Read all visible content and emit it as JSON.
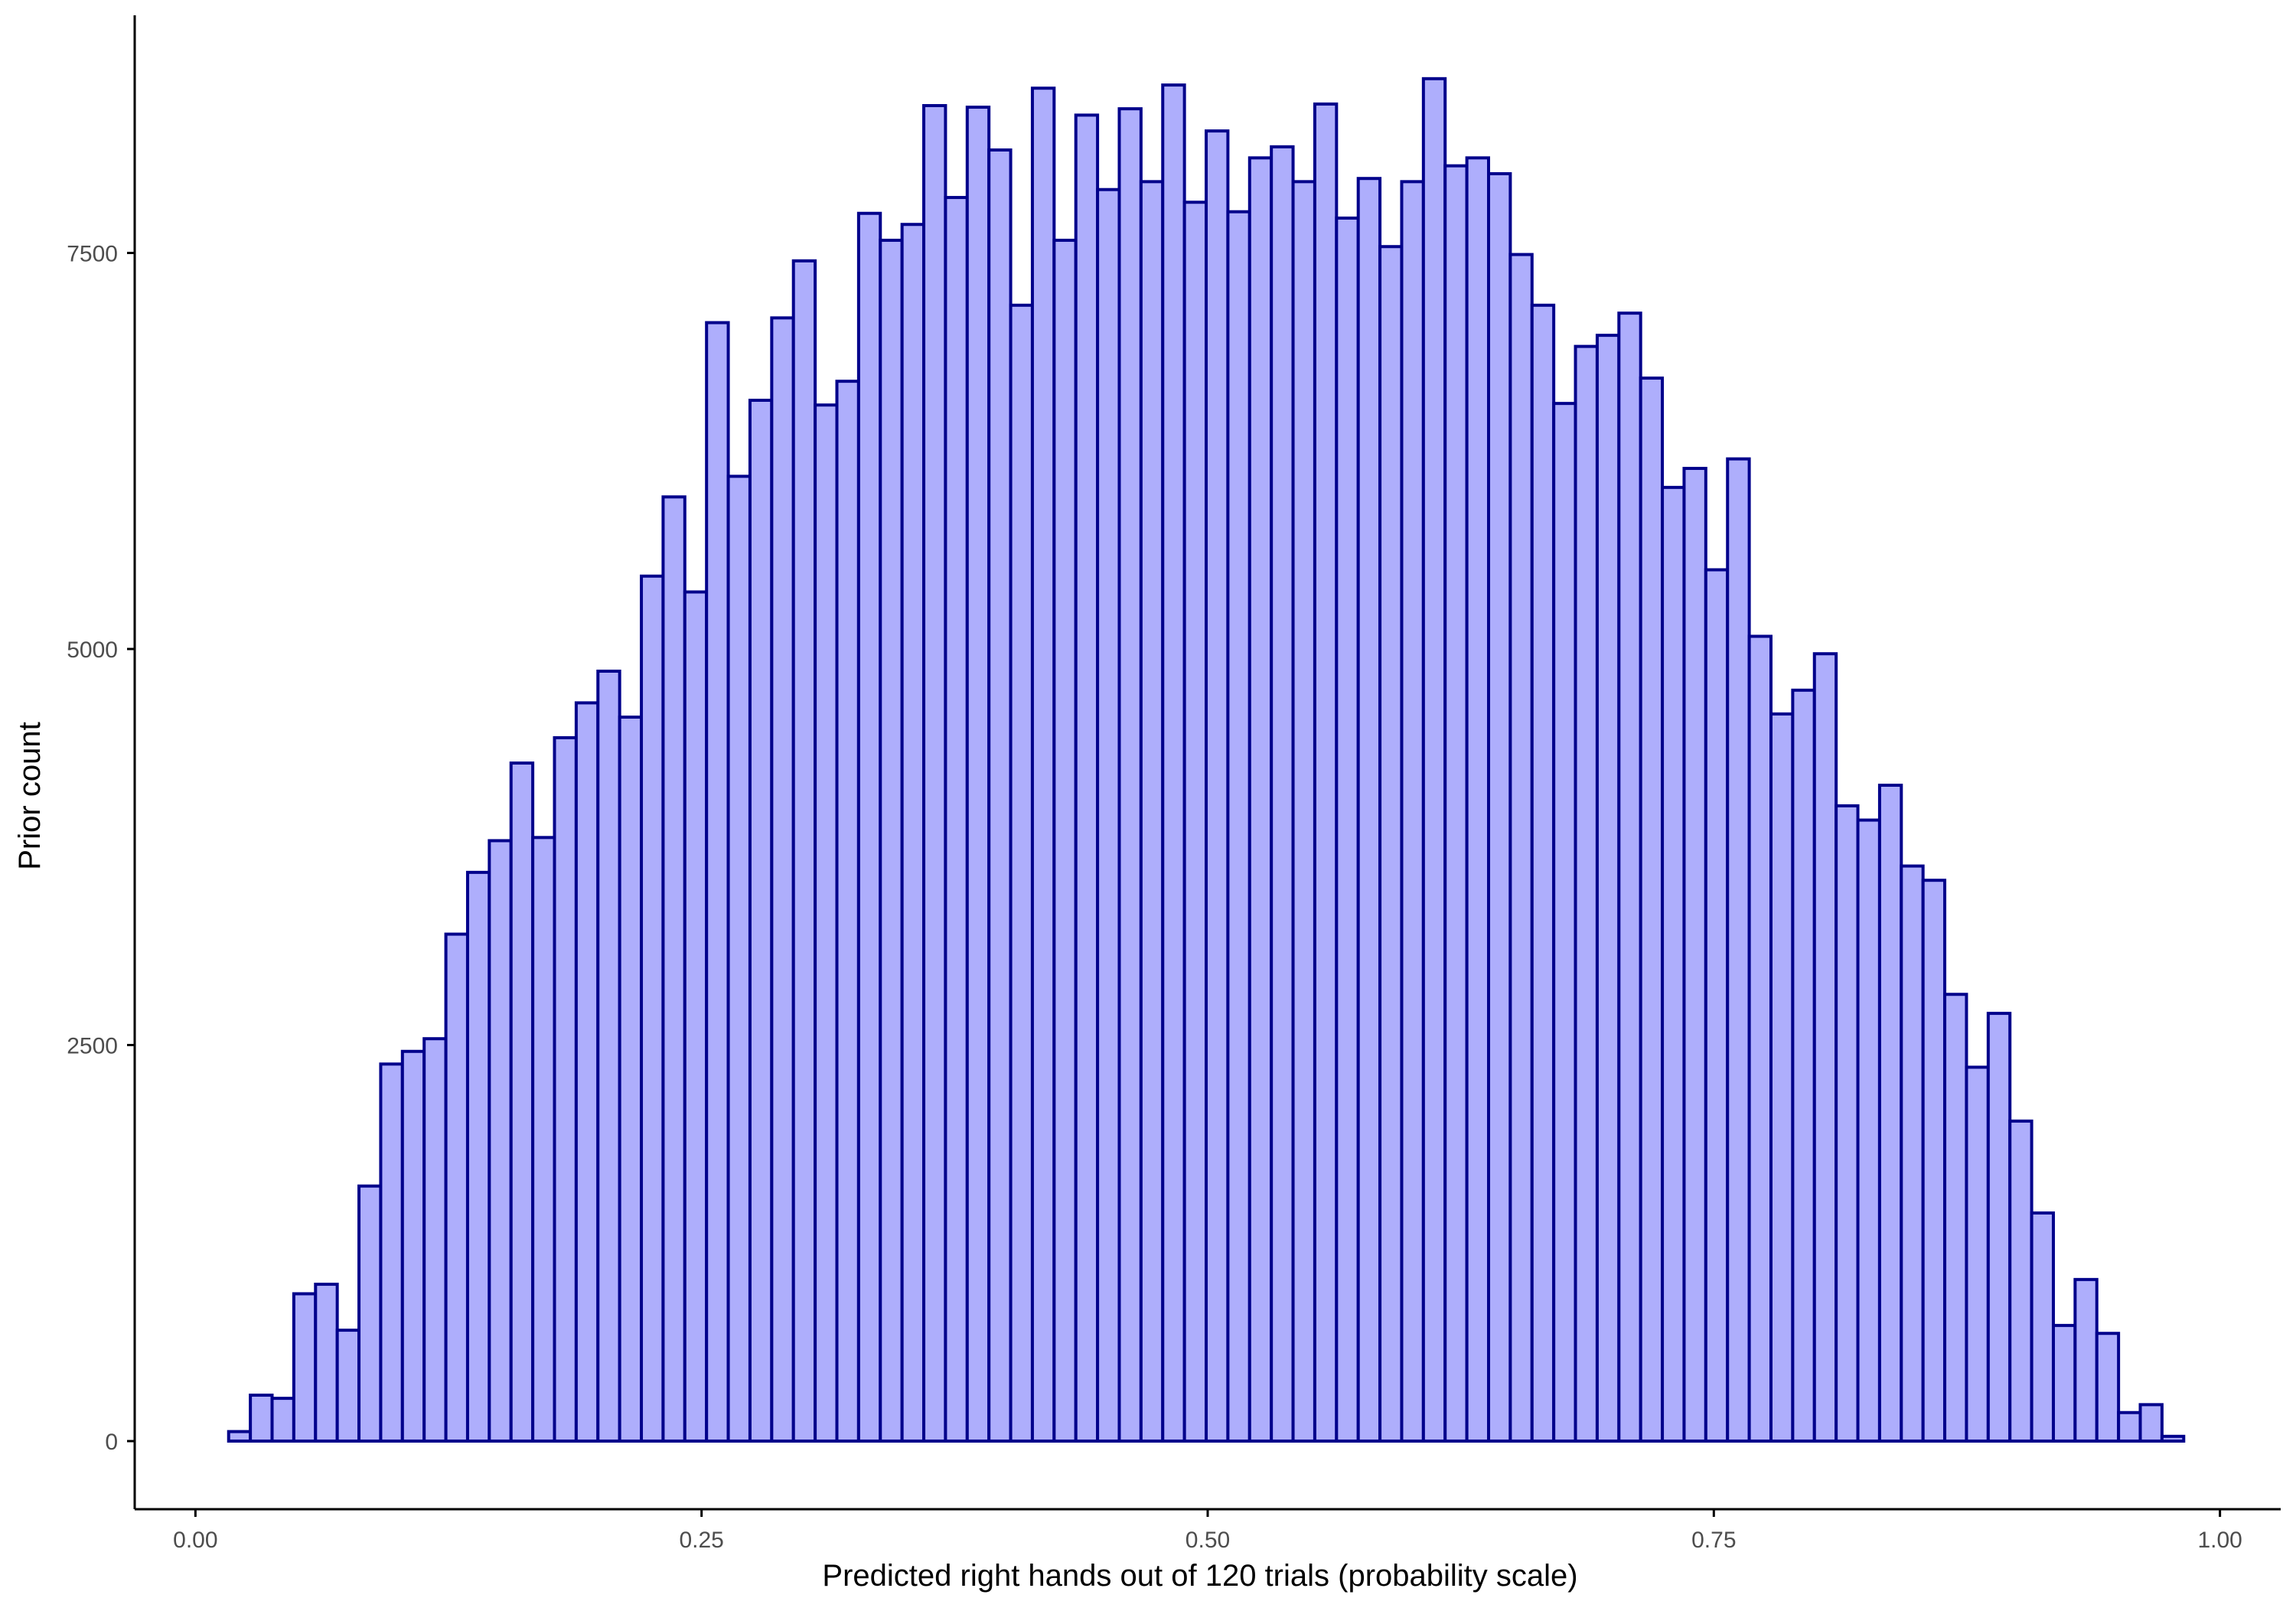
{
  "colors": {
    "bar_fill": "#aeaefc",
    "bar_stroke": "#00008b",
    "axis": "#000000",
    "tick_text": "#4d4d4d",
    "background": "#ffffff"
  },
  "chart_data": {
    "type": "bar",
    "subtype": "histogram",
    "title": "",
    "xlabel": "Predicted right hands out of 120 trials (probability scale)",
    "ylabel": "Prior count",
    "xlim": [
      -0.03,
      1.03
    ],
    "ylim": [
      -430,
      9000
    ],
    "x_ticks": [
      {
        "value": 0.0,
        "label": "0.00"
      },
      {
        "value": 0.25,
        "label": "0.25"
      },
      {
        "value": 0.5,
        "label": "0.50"
      },
      {
        "value": 0.75,
        "label": "0.75"
      },
      {
        "value": 1.0,
        "label": "1.00"
      }
    ],
    "y_ticks": [
      {
        "value": 0,
        "label": "0"
      },
      {
        "value": 2500,
        "label": "2500"
      },
      {
        "value": 5000,
        "label": "5000"
      },
      {
        "value": 7500,
        "label": "7500"
      }
    ],
    "grid": false,
    "legend": "none",
    "bin_start": 0.0164,
    "bin_width": 0.01073,
    "values": [
      60,
      290,
      270,
      930,
      990,
      700,
      1610,
      2380,
      2460,
      2540,
      3200,
      3590,
      3790,
      4280,
      3810,
      4440,
      4660,
      4860,
      4570,
      5460,
      5960,
      5360,
      7060,
      6090,
      6570,
      7090,
      7450,
      6540,
      6690,
      7750,
      7580,
      7680,
      8430,
      7850,
      8420,
      8150,
      7170,
      8540,
      7580,
      8370,
      7900,
      8410,
      7950,
      8560,
      7820,
      8270,
      7760,
      8100,
      8170,
      7950,
      8440,
      7720,
      7970,
      7540,
      7950,
      8600,
      8050,
      8100,
      8000,
      7490,
      7170,
      6550,
      6910,
      6980,
      7120,
      6710,
      6020,
      6140,
      5500,
      6200,
      5080,
      4590,
      4740,
      4970,
      4010,
      3920,
      4140,
      3630,
      3540,
      2820,
      2360,
      2700,
      2020,
      1440,
      730,
      1020,
      680,
      180,
      230,
      30
    ]
  }
}
